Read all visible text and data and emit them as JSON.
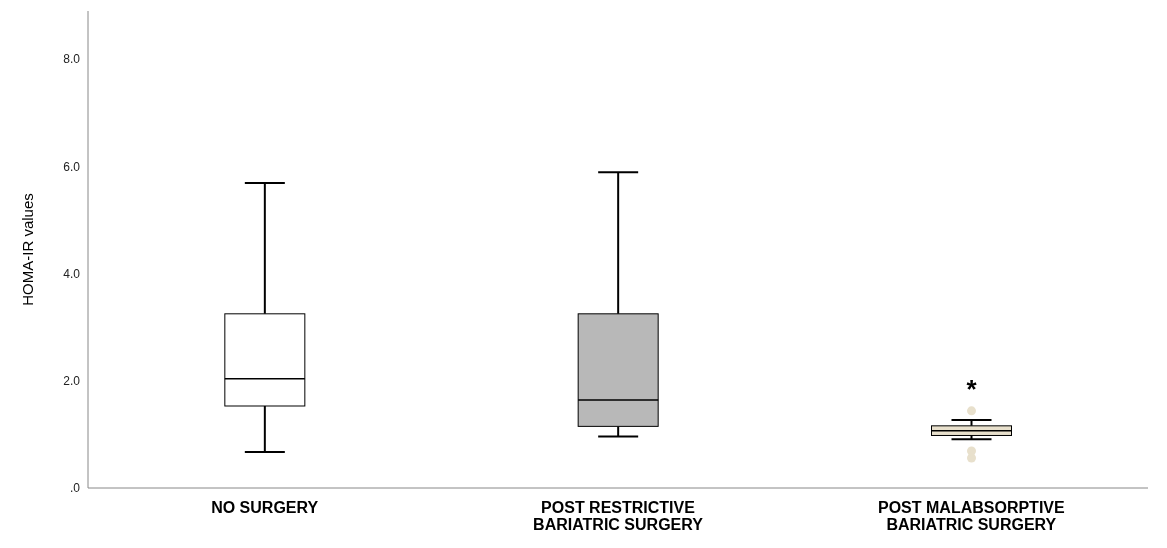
{
  "chart_data": {
    "type": "box",
    "ylabel": "HOMA-IR values",
    "categories": [
      "NO SURGERY",
      "POST RESTRICTIVE BARIATRIC SURGERY",
      "POST MALABSORPTIVE BARIATRIC SURGERY"
    ],
    "boxes": [
      {
        "low": 0.67,
        "q1": 1.53,
        "median": 2.04,
        "q3": 3.25,
        "high": 5.69
      },
      {
        "low": 0.96,
        "q1": 1.15,
        "median": 1.64,
        "q3": 3.25,
        "high": 5.89
      },
      {
        "low": 0.91,
        "q1": 0.98,
        "median": 1.07,
        "q3": 1.16,
        "high": 1.27,
        "outliers": [
          1.44,
          0.69,
          0.56
        ]
      }
    ],
    "colors": [
      "#ffffff",
      "#b8b8b8",
      "#e8e0cc"
    ],
    "ylim": [
      0,
      8.9
    ],
    "yticks": [
      {
        "value": 0,
        "label": ".0"
      },
      {
        "value": 2,
        "label": "2.0"
      },
      {
        "value": 4,
        "label": "4.0"
      },
      {
        "value": 6,
        "label": "6.0"
      },
      {
        "value": 8,
        "label": "8.0"
      }
    ],
    "annotations": [
      "*"
    ],
    "grid": false
  }
}
